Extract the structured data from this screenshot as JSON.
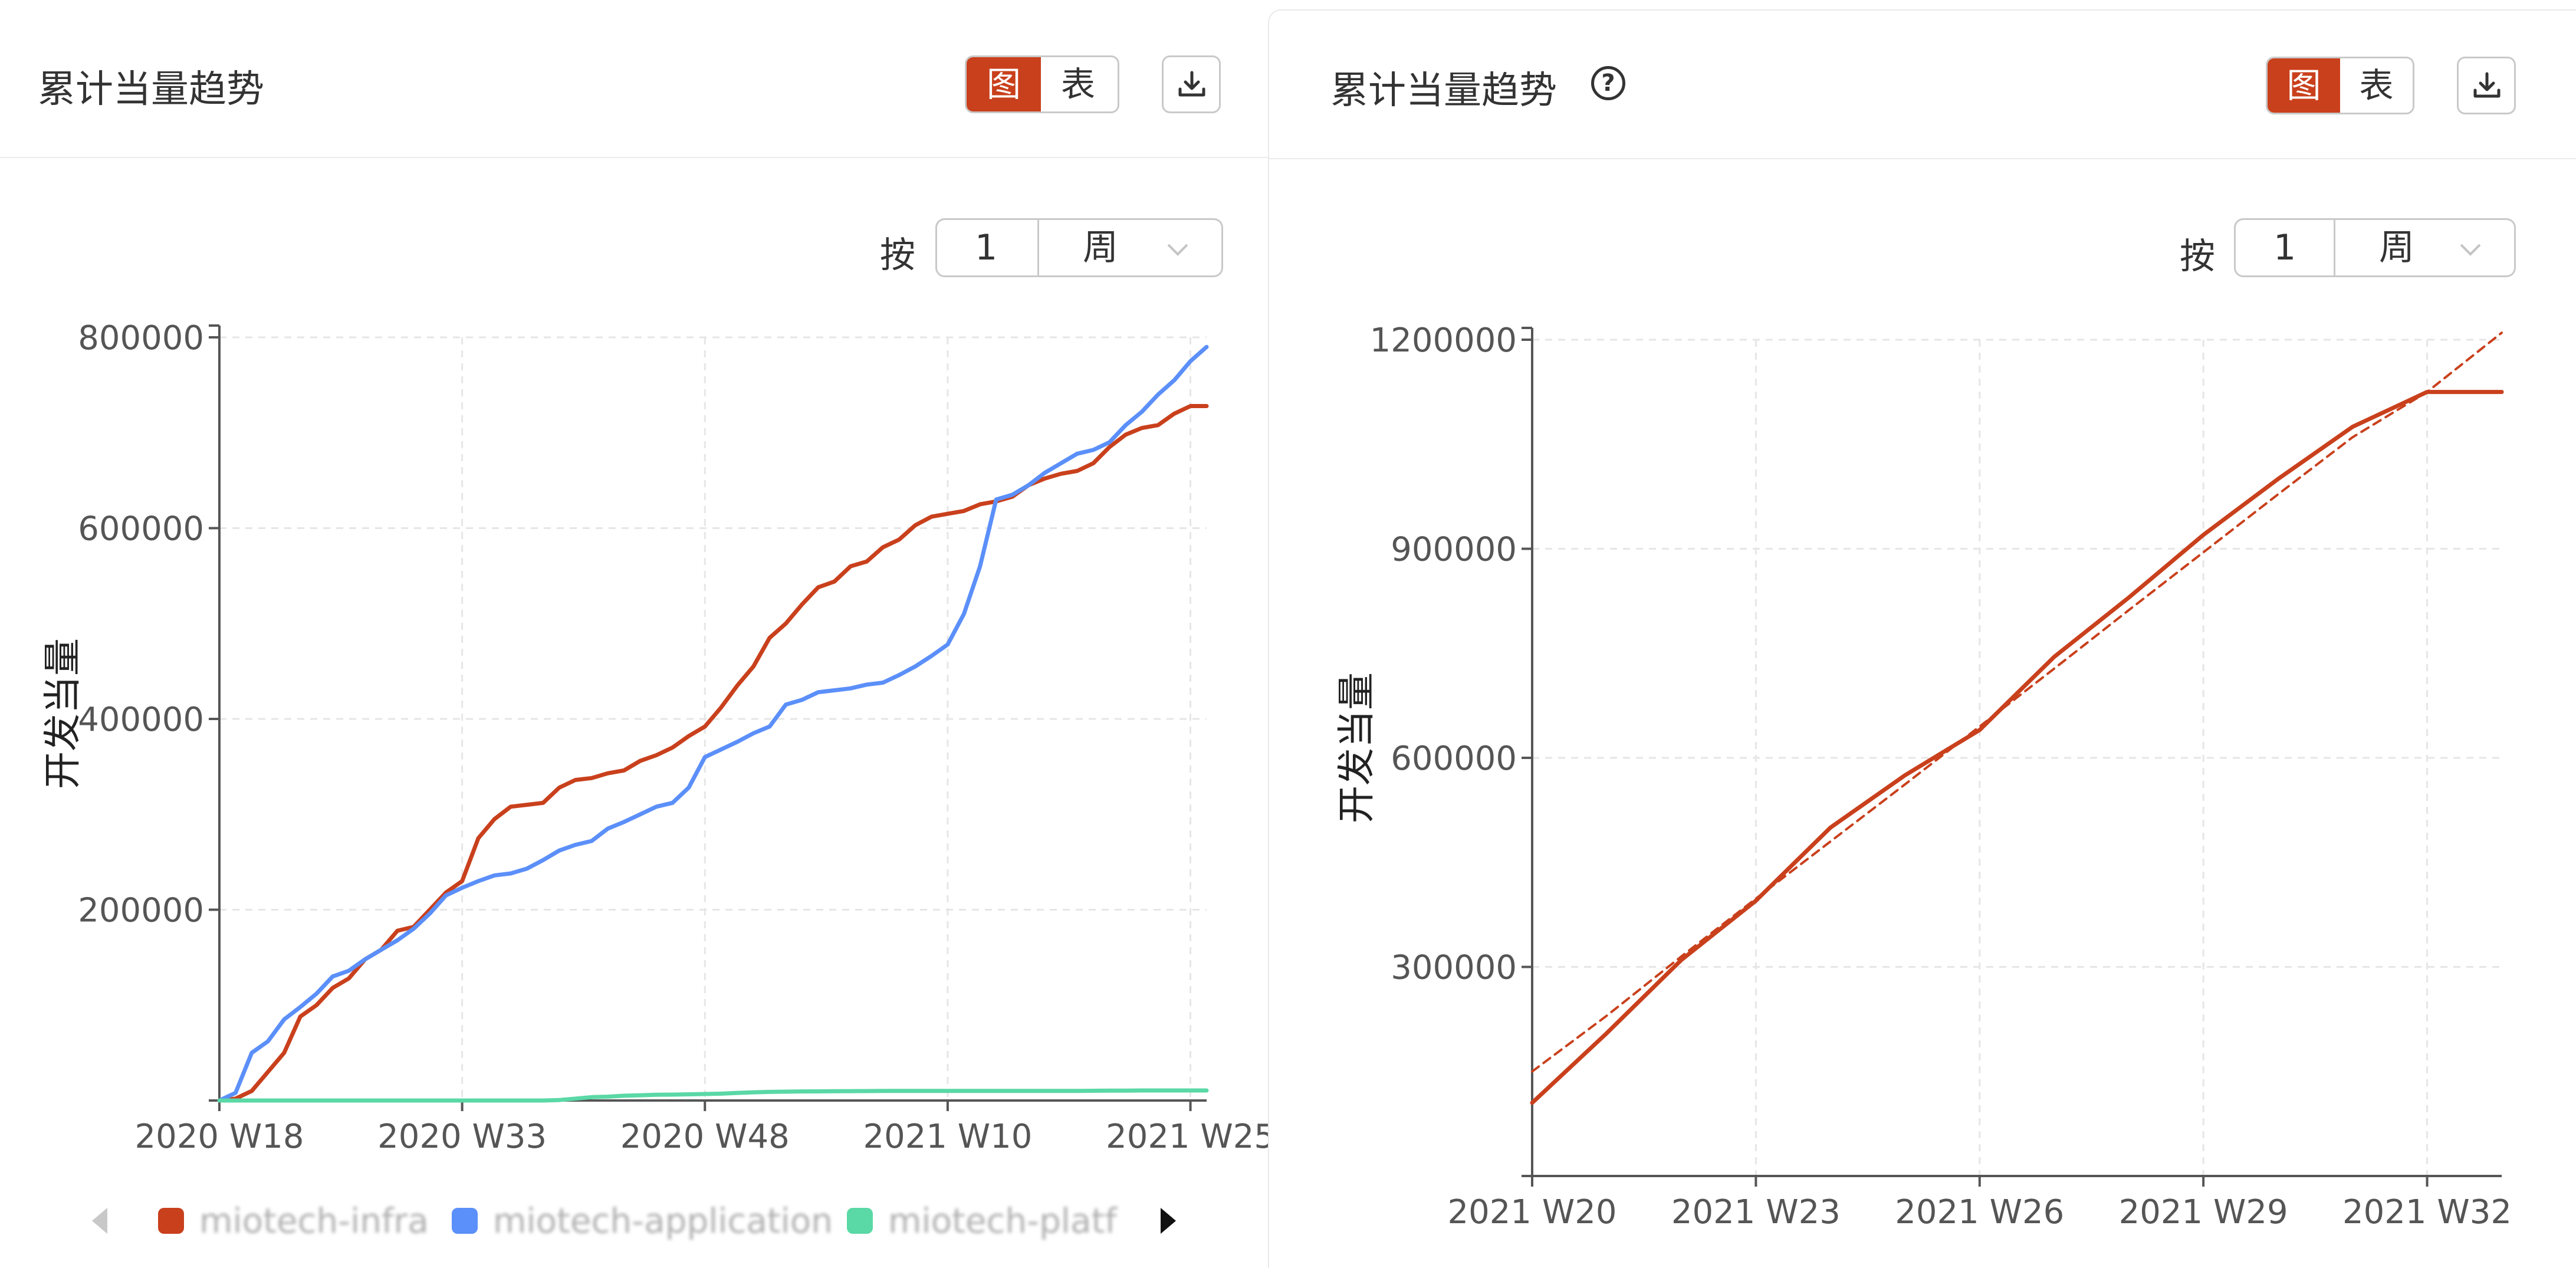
{
  "colors": {
    "accent": "#c9401c",
    "series_infra": "#c9401c",
    "series_application": "#5b8ff9",
    "series_platform": "#5ad8a6",
    "axis": "#555555",
    "grid": "#e6e6e6",
    "text": "#333333"
  },
  "left_panel": {
    "title": "累计当量趋势",
    "view_toggle": {
      "chart_label": "图",
      "table_label": "表",
      "active": "图"
    },
    "download_icon": "download-icon",
    "period": {
      "label": "按",
      "value": "1",
      "unit": "周"
    },
    "legend": {
      "items": [
        {
          "label": "miotech-infra",
          "color": "#c9401c"
        },
        {
          "label": "miotech-application",
          "color": "#5b8ff9"
        },
        {
          "label": "miotech-platf",
          "color": "#5ad8a6"
        }
      ]
    }
  },
  "right_panel": {
    "title": "累计当量趋势",
    "help_icon": "question-circle-icon",
    "help_glyph": "?",
    "view_toggle": {
      "chart_label": "图",
      "table_label": "表",
      "active": "图"
    },
    "download_icon": "download-icon",
    "period": {
      "label": "按",
      "value": "1",
      "unit": "周"
    }
  },
  "chart_data": [
    {
      "type": "line",
      "title": "累计当量趋势",
      "ylabel": "开发当量",
      "xlabel": "",
      "ylim": [
        0,
        800000
      ],
      "yticks": [
        200000,
        400000,
        600000,
        800000
      ],
      "yticks_labels": [
        "200000",
        "400000",
        "600000",
        "800000"
      ],
      "x_start": "2020 W18",
      "x_end": "2021 W25",
      "x_ticks": [
        {
          "label": "2020 W18",
          "index": 0
        },
        {
          "label": "2020 W33",
          "index": 15
        },
        {
          "label": "2020 W48",
          "index": 30
        },
        {
          "label": "2021 W10",
          "index": 45
        },
        {
          "label": "2021 W25",
          "index": 60
        }
      ],
      "grid": true,
      "legend_position": "bottom",
      "series": [
        {
          "name": "miotech-infra",
          "color": "#c9401c",
          "values": [
            0,
            2000,
            10000,
            30000,
            50000,
            88000,
            100000,
            118000,
            128000,
            148000,
            158000,
            178000,
            182000,
            200000,
            218000,
            230000,
            275000,
            295000,
            308000,
            310000,
            312000,
            328000,
            336000,
            338000,
            343000,
            346000,
            356000,
            362000,
            370000,
            382000,
            392000,
            412000,
            435000,
            455000,
            485000,
            500000,
            520000,
            538000,
            544000,
            560000,
            565000,
            580000,
            588000,
            603000,
            612000,
            615000,
            618000,
            625000,
            628000,
            633000,
            645000,
            652000,
            657000,
            660000,
            668000,
            685000,
            698000,
            705000,
            708000,
            720000,
            728000,
            728000
          ]
        },
        {
          "name": "miotech-application",
          "color": "#5b8ff9",
          "values": [
            0,
            8000,
            50000,
            62000,
            85000,
            98000,
            112000,
            130000,
            136000,
            148000,
            158000,
            168000,
            180000,
            196000,
            215000,
            223000,
            230000,
            236000,
            238000,
            243000,
            252000,
            262000,
            268000,
            272000,
            285000,
            292000,
            300000,
            308000,
            312000,
            328000,
            360000,
            368000,
            376000,
            385000,
            392000,
            415000,
            420000,
            428000,
            430000,
            432000,
            436000,
            438000,
            446000,
            455000,
            466000,
            478000,
            510000,
            560000,
            630000,
            635000,
            645000,
            658000,
            668000,
            678000,
            682000,
            690000,
            708000,
            722000,
            740000,
            755000,
            775000,
            790000
          ]
        },
        {
          "name": "miotech-platf",
          "color": "#5ad8a6",
          "values": [
            0,
            0,
            0,
            0,
            0,
            0,
            0,
            0,
            0,
            0,
            0,
            0,
            0,
            0,
            0,
            0,
            0,
            0,
            0,
            0,
            0,
            500,
            2000,
            3500,
            4000,
            5000,
            5500,
            6000,
            6200,
            6500,
            6800,
            7200,
            8000,
            8600,
            9000,
            9300,
            9500,
            9600,
            9700,
            9800,
            9900,
            10000,
            10000,
            10000,
            10000,
            10000,
            10000,
            10000,
            10000,
            10000,
            10000,
            10000,
            10000,
            10000,
            10200,
            10300,
            10400,
            10500,
            10500,
            10500,
            10500,
            10500
          ]
        }
      ]
    },
    {
      "type": "line",
      "title": "累计当量趋势",
      "ylabel": "开发当量",
      "xlabel": "",
      "ylim": [
        0,
        1200000
      ],
      "yticks": [
        300000,
        600000,
        900000,
        1200000
      ],
      "yticks_labels": [
        "300000",
        "600000",
        "900000",
        "1200000"
      ],
      "x_start": "2021 W20",
      "x_end": "2021 W33",
      "x_ticks": [
        {
          "label": "2021 W20",
          "index": 0
        },
        {
          "label": "2021 W23",
          "index": 3
        },
        {
          "label": "2021 W26",
          "index": 6
        },
        {
          "label": "2021 W29",
          "index": 9
        },
        {
          "label": "2021 W32",
          "index": 12
        }
      ],
      "grid": true,
      "series": [
        {
          "name": "",
          "color": "#c9401c",
          "style": "solid",
          "values": [
            105000,
            205000,
            310000,
            395000,
            500000,
            575000,
            640000,
            745000,
            830000,
            920000,
            1000000,
            1075000,
            1125000,
            1125000
          ]
        },
        {
          "name": "",
          "color": "#c9401c",
          "style": "dashed",
          "trendline": true,
          "values": [
            150000,
            230000,
            315000,
            398000,
            480000,
            562000,
            645000,
            728000,
            812000,
            895000,
            978000,
            1060000,
            1125000,
            1210000
          ]
        }
      ]
    }
  ]
}
